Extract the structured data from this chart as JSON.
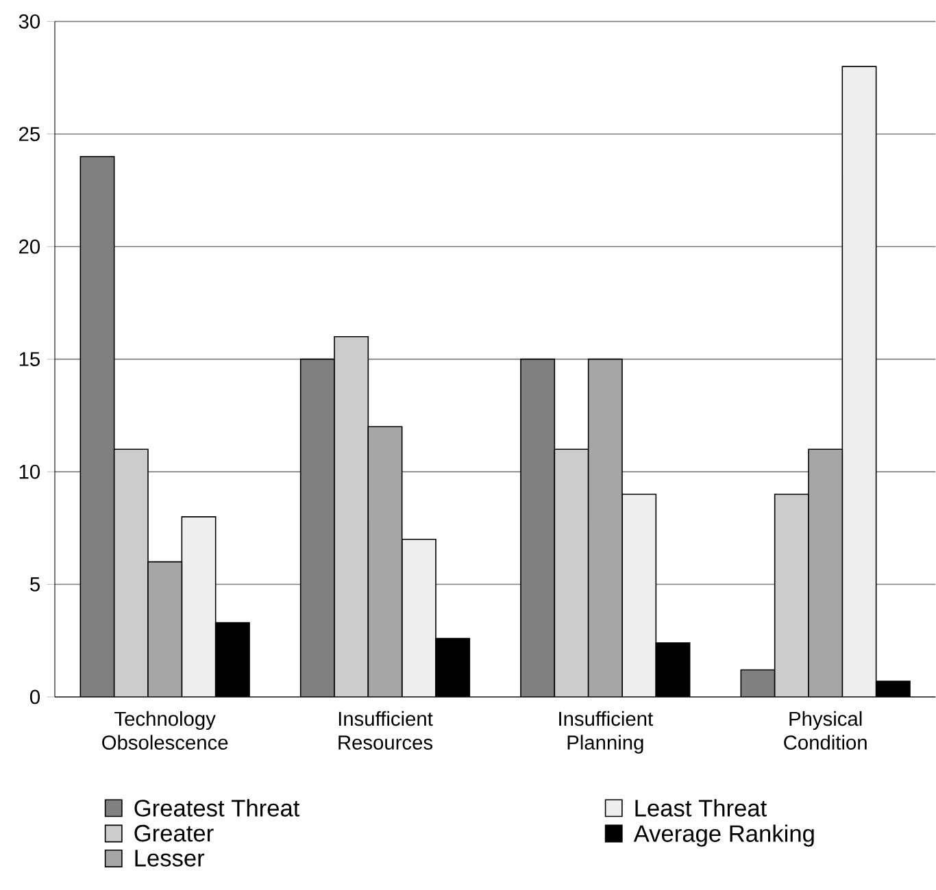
{
  "chart_data": {
    "type": "bar",
    "categories": [
      "Technology Obsolescence",
      "Insufficient Resources",
      "Insufficient Planning",
      "Physical Condition"
    ],
    "series": [
      {
        "name": "Greatest Threat",
        "color": "#808080",
        "values": [
          24,
          15,
          15,
          1.2
        ]
      },
      {
        "name": "Greater",
        "color": "#cccccc",
        "values": [
          11,
          16,
          11,
          9
        ]
      },
      {
        "name": "Lesser",
        "color": "#a6a6a6",
        "values": [
          6,
          12,
          15,
          11
        ]
      },
      {
        "name": "Least Threat",
        "color": "#eeeeee",
        "values": [
          8,
          7,
          9,
          28
        ]
      },
      {
        "name": "Average Ranking",
        "color": "#000000",
        "values": [
          3.3,
          2.6,
          2.4,
          0.7
        ]
      }
    ],
    "ylim": [
      0,
      30
    ],
    "yticks": [
      0,
      5,
      10,
      15,
      20,
      25,
      30
    ],
    "grid": "y",
    "legend": "bottom"
  }
}
